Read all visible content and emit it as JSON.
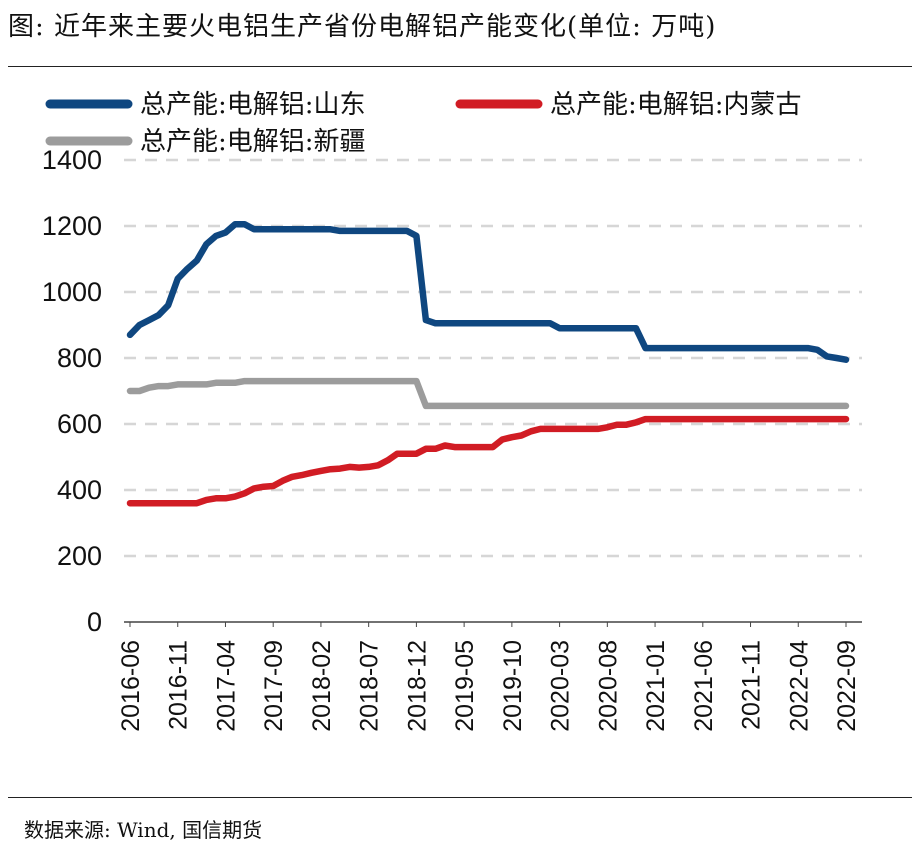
{
  "header": {
    "title": "图:  近年来主要火电铝生产省份电解铝产能变化(单位: 万吨)"
  },
  "footer": {
    "source": "数据来源: Wind, 国信期货"
  },
  "chart_data": {
    "type": "line",
    "title": "图:  近年来主要火电铝生产省份电解铝产能变化(单位: 万吨)",
    "ylim": [
      0,
      1400
    ],
    "yticks": [
      0,
      200,
      400,
      600,
      800,
      1000,
      1200,
      1400
    ],
    "x_ticks": [
      "2016-06",
      "2016-11",
      "2017-04",
      "2017-09",
      "2018-02",
      "2018-07",
      "2018-12",
      "2019-05",
      "2019-10",
      "2020-03",
      "2020-08",
      "2021-01",
      "2021-06",
      "2021-11",
      "2022-04",
      "2022-09"
    ],
    "x": [
      "2016-06",
      "2016-07",
      "2016-08",
      "2016-09",
      "2016-10",
      "2016-11",
      "2016-12",
      "2017-01",
      "2017-02",
      "2017-03",
      "2017-04",
      "2017-05",
      "2017-06",
      "2017-07",
      "2017-08",
      "2017-09",
      "2017-10",
      "2017-11",
      "2017-12",
      "2018-01",
      "2018-02",
      "2018-03",
      "2018-04",
      "2018-05",
      "2018-06",
      "2018-07",
      "2018-08",
      "2018-09",
      "2018-10",
      "2018-11",
      "2018-12",
      "2019-01",
      "2019-02",
      "2019-03",
      "2019-04",
      "2019-05",
      "2019-06",
      "2019-07",
      "2019-08",
      "2019-09",
      "2019-10",
      "2019-11",
      "2019-12",
      "2020-01",
      "2020-02",
      "2020-03",
      "2020-04",
      "2020-05",
      "2020-06",
      "2020-07",
      "2020-08",
      "2020-09",
      "2020-10",
      "2020-11",
      "2020-12",
      "2021-01",
      "2021-02",
      "2021-03",
      "2021-04",
      "2021-05",
      "2021-06",
      "2021-07",
      "2021-08",
      "2021-09",
      "2021-10",
      "2021-11",
      "2021-12",
      "2022-01",
      "2022-02",
      "2022-03",
      "2022-04",
      "2022-05",
      "2022-06",
      "2022-07",
      "2022-08",
      "2022-09"
    ],
    "grid": true,
    "legend_position": "top",
    "series": [
      {
        "name": "总产能:电解铝:山东",
        "color": "#0f4780",
        "values": [
          870,
          900,
          915,
          930,
          960,
          1040,
          1070,
          1095,
          1145,
          1170,
          1180,
          1205,
          1205,
          1190,
          1190,
          1190,
          1190,
          1190,
          1190,
          1190,
          1190,
          1190,
          1185,
          1185,
          1185,
          1185,
          1185,
          1185,
          1185,
          1185,
          1170,
          915,
          905,
          905,
          905,
          905,
          905,
          905,
          905,
          905,
          905,
          905,
          905,
          905,
          905,
          890,
          890,
          890,
          890,
          890,
          890,
          890,
          890,
          890,
          830,
          830,
          830,
          830,
          830,
          830,
          830,
          830,
          830,
          830,
          830,
          830,
          830,
          830,
          830,
          830,
          830,
          830,
          825,
          805,
          800,
          795
        ]
      },
      {
        "name": "总产能:电解铝:内蒙古",
        "color": "#d11c24",
        "values": [
          360,
          360,
          360,
          360,
          360,
          360,
          360,
          360,
          370,
          375,
          375,
          380,
          390,
          405,
          410,
          412,
          428,
          440,
          445,
          452,
          458,
          463,
          465,
          470,
          468,
          470,
          475,
          490,
          510,
          510,
          510,
          525,
          525,
          535,
          530,
          530,
          530,
          530,
          530,
          553,
          560,
          565,
          578,
          585,
          585,
          585,
          585,
          585,
          585,
          585,
          590,
          598,
          598,
          605,
          615,
          615,
          615,
          615,
          615,
          615,
          615,
          615,
          615,
          615,
          615,
          615,
          615,
          615,
          615,
          615,
          615,
          615,
          615,
          615,
          615,
          615
        ]
      },
      {
        "name": "总产能:电解铝:新疆",
        "color": "#9c9c9c",
        "values": [
          700,
          700,
          710,
          715,
          715,
          720,
          720,
          720,
          720,
          725,
          725,
          725,
          730,
          730,
          730,
          730,
          730,
          730,
          730,
          730,
          730,
          730,
          730,
          730,
          730,
          730,
          730,
          730,
          730,
          730,
          730,
          655,
          655,
          655,
          655,
          655,
          655,
          655,
          655,
          655,
          655,
          655,
          655,
          655,
          655,
          655,
          655,
          655,
          655,
          655,
          655,
          655,
          655,
          655,
          655,
          655,
          655,
          655,
          655,
          655,
          655,
          655,
          655,
          655,
          655,
          655,
          655,
          655,
          655,
          655,
          655,
          655,
          655,
          655,
          655,
          655
        ]
      }
    ]
  }
}
